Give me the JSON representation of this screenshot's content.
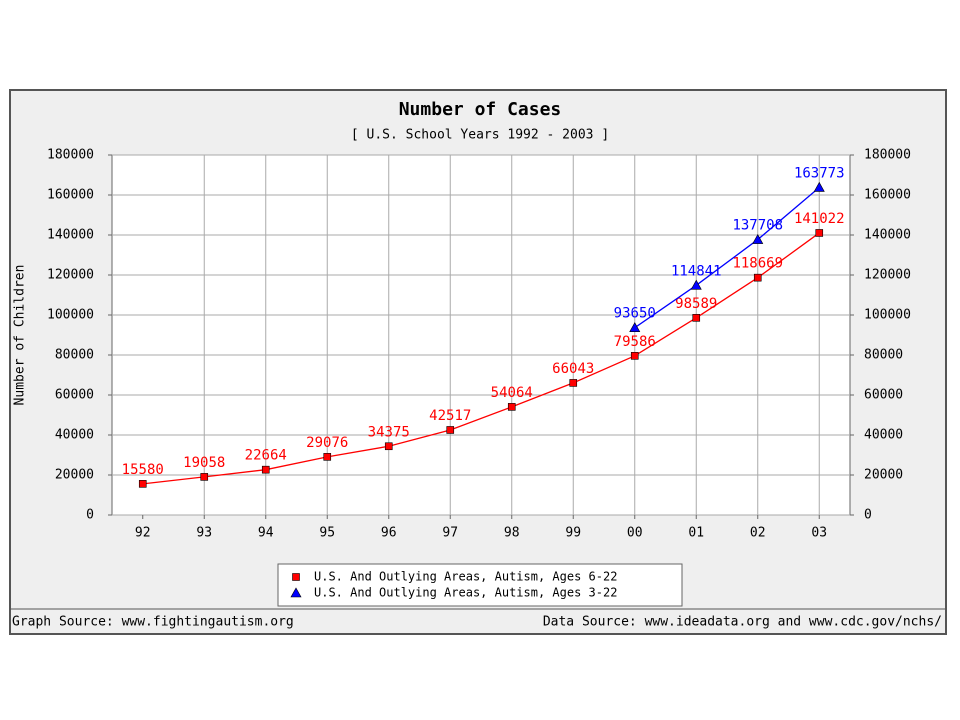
{
  "chart_data": {
    "type": "line",
    "title": "Number of Cases",
    "subtitle": "[ U.S. School Years 1992 - 2003 ]",
    "y_label": "Number of Children",
    "categories": [
      "92",
      "93",
      "94",
      "95",
      "96",
      "97",
      "98",
      "99",
      "00",
      "01",
      "02",
      "03"
    ],
    "series": [
      {
        "name": "U.S. And Outlying Areas, Autism, Ages 6-22",
        "color": "#ff0000",
        "marker": "square",
        "values": [
          15580,
          19058,
          22664,
          29076,
          34375,
          42517,
          54064,
          66043,
          79586,
          98589,
          118669,
          141022
        ]
      },
      {
        "name": "U.S. And Outlying Areas, Autism, Ages 3-22",
        "color": "#0000ff",
        "marker": "triangle",
        "values": [
          null,
          null,
          null,
          null,
          null,
          null,
          null,
          null,
          93650,
          114841,
          137708,
          163773
        ]
      }
    ],
    "ylim": [
      0,
      180000
    ],
    "yticks": [
      0,
      20000,
      40000,
      60000,
      80000,
      100000,
      120000,
      140000,
      160000,
      180000
    ],
    "grid": true,
    "footer_left": "Graph Source: www.fightingautism.org",
    "footer_right": "Data Source: www.ideadata.org and www.cdc.gov/nchs/"
  }
}
